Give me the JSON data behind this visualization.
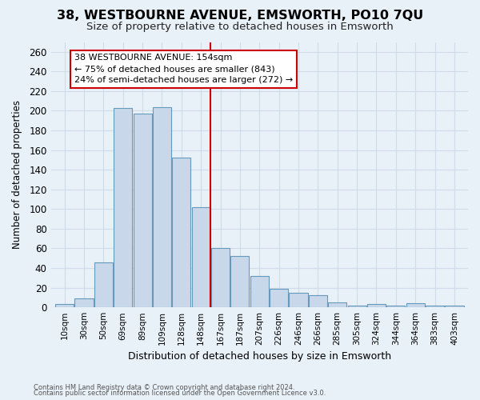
{
  "title": "38, WESTBOURNE AVENUE, EMSWORTH, PO10 7QU",
  "subtitle": "Size of property relative to detached houses in Emsworth",
  "xlabel": "Distribution of detached houses by size in Emsworth",
  "ylabel": "Number of detached properties",
  "categories": [
    "10sqm",
    "30sqm",
    "50sqm",
    "69sqm",
    "89sqm",
    "109sqm",
    "128sqm",
    "148sqm",
    "167sqm",
    "187sqm",
    "207sqm",
    "226sqm",
    "246sqm",
    "266sqm",
    "285sqm",
    "305sqm",
    "324sqm",
    "344sqm",
    "364sqm",
    "383sqm",
    "403sqm"
  ],
  "values": [
    3,
    9,
    46,
    203,
    197,
    204,
    152,
    102,
    60,
    52,
    32,
    19,
    15,
    12,
    5,
    2,
    3,
    2,
    4,
    2,
    2
  ],
  "bar_color": "#c8d8ea",
  "bar_edge_color": "#6699bb",
  "vline_x": 7.5,
  "vline_color": "#cc0000",
  "annotation_title": "38 WESTBOURNE AVENUE: 154sqm",
  "annotation_line1": "← 75% of detached houses are smaller (843)",
  "annotation_line2": "24% of semi-detached houses are larger (272) →",
  "annotation_box_color": "#ffffff",
  "annotation_box_edge": "#cc0000",
  "ylim": [
    0,
    270
  ],
  "yticks": [
    0,
    20,
    40,
    60,
    80,
    100,
    120,
    140,
    160,
    180,
    200,
    220,
    240,
    260
  ],
  "footnote1": "Contains HM Land Registry data © Crown copyright and database right 2024.",
  "footnote2": "Contains public sector information licensed under the Open Government Licence v3.0.",
  "grid_color": "#d0dce8",
  "background_color": "#e8f0f8",
  "plot_bg_color": "#e8f0f8"
}
